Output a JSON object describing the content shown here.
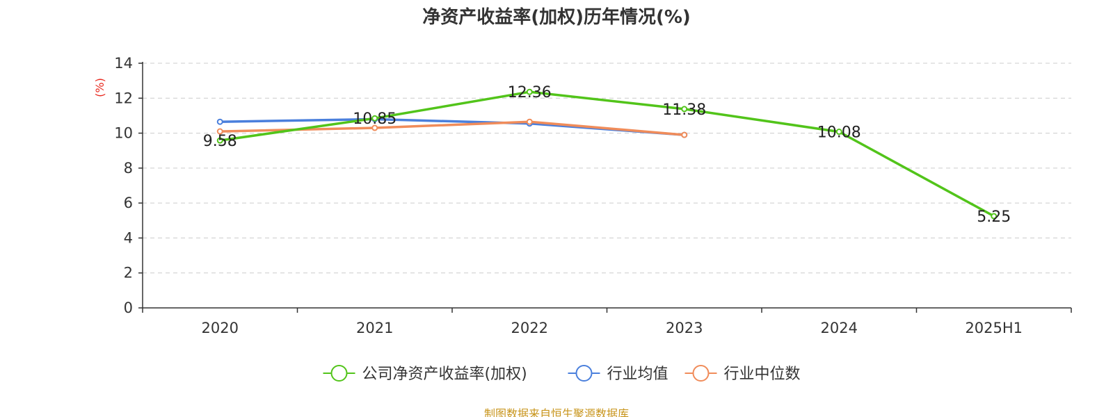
{
  "chart_data": {
    "type": "line",
    "title": "净资产收益率(加权)历年情况(%)",
    "ylabel": "(%)",
    "xlabel": "",
    "categories": [
      "2020",
      "2021",
      "2022",
      "2023",
      "2024",
      "2025H1"
    ],
    "ylim": [
      0,
      14
    ],
    "yticks": [
      0,
      2,
      4,
      6,
      8,
      10,
      12,
      14
    ],
    "grid": true,
    "legend_position": "bottom",
    "series": [
      {
        "name": "公司净资产收益率(加权)",
        "color": "#52c41a",
        "values": [
          9.58,
          10.85,
          12.36,
          11.38,
          10.08,
          5.25
        ],
        "labels": [
          "9.58",
          "10.85",
          "12.36",
          "11.38",
          "10.08",
          "5.25"
        ]
      },
      {
        "name": "行业均值",
        "color": "#4a7fdc",
        "values": [
          10.65,
          10.8,
          10.55,
          9.9,
          null,
          null
        ]
      },
      {
        "name": "行业中位数",
        "color": "#f08c5a",
        "values": [
          10.1,
          10.3,
          10.65,
          9.9,
          null,
          null
        ]
      }
    ]
  },
  "footer": {
    "source": "制图数据来自恒生聚源数据库"
  },
  "colors": {
    "title": "#333333",
    "axis": "#333333",
    "grid": "#cccccc",
    "ylabel": "#e8281e",
    "source": "#c8951c"
  }
}
